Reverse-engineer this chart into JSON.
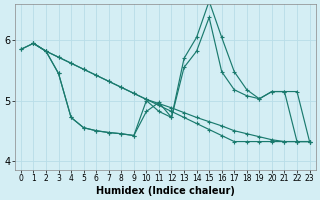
{
  "xlabel": "Humidex (Indice chaleur)",
  "background_color": "#d4eef4",
  "grid_color": "#b8dde8",
  "line_color": "#1a7a6e",
  "xlim": [
    -0.5,
    23.5
  ],
  "ylim": [
    3.85,
    6.6
  ],
  "yticks": [
    4,
    5,
    6
  ],
  "xticks": [
    0,
    1,
    2,
    3,
    4,
    5,
    6,
    7,
    8,
    9,
    10,
    11,
    12,
    13,
    14,
    15,
    16,
    17,
    18,
    19,
    20,
    21,
    22,
    23
  ],
  "series": [
    {
      "x": [
        0,
        1,
        2,
        3,
        4,
        5,
        6,
        7,
        8,
        9,
        10,
        11,
        12,
        13,
        14,
        15,
        16,
        17,
        18,
        19,
        20,
        21,
        22,
        23
      ],
      "y": [
        5.85,
        5.95,
        5.82,
        5.72,
        5.62,
        5.52,
        5.42,
        5.32,
        5.22,
        5.12,
        5.02,
        4.92,
        4.82,
        4.72,
        4.62,
        4.52,
        4.42,
        4.32,
        4.32,
        4.32,
        4.32,
        4.32,
        4.32,
        4.32
      ]
    },
    {
      "x": [
        0,
        1,
        2,
        3,
        4,
        5,
        6,
        7,
        8,
        9,
        10,
        11,
        12,
        13,
        14,
        15,
        16,
        17,
        18,
        19,
        20,
        21,
        22,
        23
      ],
      "y": [
        5.85,
        5.95,
        5.82,
        5.72,
        5.62,
        5.52,
        5.42,
        5.32,
        5.22,
        5.12,
        5.02,
        4.95,
        4.88,
        4.8,
        4.72,
        4.65,
        4.58,
        4.5,
        4.45,
        4.4,
        4.35,
        4.32,
        4.32,
        4.32
      ]
    },
    {
      "x": [
        1,
        2,
        3,
        4,
        5,
        6,
        7,
        8,
        9,
        10,
        11,
        12,
        13,
        14,
        15,
        16,
        17,
        18,
        19,
        20,
        21,
        22,
        23
      ],
      "y": [
        5.95,
        5.82,
        5.45,
        4.72,
        4.55,
        4.5,
        4.47,
        4.45,
        4.42,
        4.82,
        4.97,
        4.72,
        5.55,
        5.82,
        6.38,
        5.48,
        5.18,
        5.08,
        5.03,
        5.15,
        5.15,
        4.32,
        4.32
      ]
    },
    {
      "x": [
        1,
        2,
        3,
        4,
        5,
        6,
        7,
        8,
        9,
        10,
        11,
        12,
        13,
        14,
        15,
        16,
        17,
        18,
        19,
        20,
        21,
        22,
        23
      ],
      "y": [
        5.95,
        5.82,
        5.45,
        4.72,
        4.55,
        4.5,
        4.47,
        4.45,
        4.42,
        5.0,
        4.82,
        4.72,
        5.7,
        6.05,
        6.65,
        6.05,
        5.48,
        5.18,
        5.03,
        5.15,
        5.15,
        5.15,
        4.32
      ]
    }
  ]
}
